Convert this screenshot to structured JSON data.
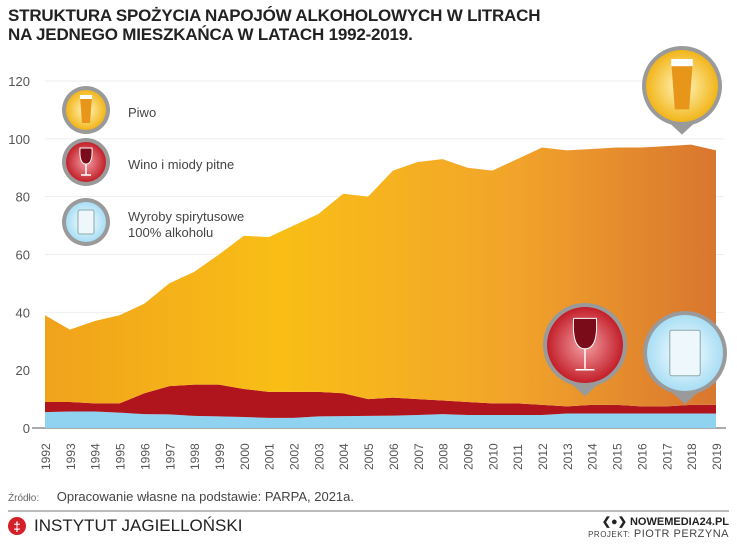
{
  "title_lines": [
    "STRUKTURA SPOŻYCIA NAPOJÓW ALKOHOLOWYCH W LITRACH",
    "NA JEDNEGO MIESZKAŃCA W LATACH 1992-2019."
  ],
  "chart_data": {
    "type": "area",
    "stacked": true,
    "title": "STRUKTURA SPOŻYCIA NAPOJÓW ALKOHOLOWYCH W LITRACH NA JEDNEGO MIESZKAŃCA W LATACH 1992-2019.",
    "xlabel": "",
    "ylabel": "",
    "ylim": [
      0,
      120
    ],
    "yticks": [
      0,
      20,
      40,
      60,
      80,
      100,
      120
    ],
    "grid": true,
    "legend_position": "top-left",
    "categories": [
      "1992",
      "1993",
      "1994",
      "1995",
      "1996",
      "1997",
      "1998",
      "1999",
      "2000",
      "2001",
      "2002",
      "2003",
      "2004",
      "2005",
      "2006",
      "2007",
      "2008",
      "2009",
      "2010",
      "2011",
      "2012",
      "2013",
      "2014",
      "2015",
      "2016",
      "2017",
      "2018",
      "2019"
    ],
    "series": [
      {
        "name": "Wyroby spirytusowe 100% alkoholu",
        "color": "#8fd3f0",
        "values": [
          5.5,
          5.7,
          5.7,
          5.3,
          4.8,
          4.7,
          4.2,
          4.0,
          3.8,
          3.5,
          3.5,
          4.0,
          4.1,
          4.2,
          4.3,
          4.5,
          4.8,
          4.5,
          4.5,
          4.5,
          4.5,
          5.0,
          5.0,
          5.0,
          5.0,
          5.0,
          5.0,
          5.0
        ]
      },
      {
        "name": "Wino i miody pitne",
        "color": "#b0141c",
        "values": [
          3.5,
          3.3,
          2.8,
          3.2,
          7.2,
          9.8,
          10.8,
          11.0,
          9.7,
          9.0,
          9.0,
          8.5,
          7.9,
          5.8,
          6.2,
          5.5,
          4.7,
          4.5,
          4.0,
          4.0,
          3.5,
          2.5,
          3.0,
          3.0,
          2.5,
          2.5,
          3.0,
          3.0
        ]
      },
      {
        "name": "Piwo",
        "color": "#f5b21a",
        "values": [
          30,
          25,
          28.5,
          30.5,
          31,
          35.5,
          39,
          45,
          53,
          53.5,
          57.5,
          61.5,
          69,
          70,
          78.5,
          82,
          83.5,
          81,
          80.5,
          84.5,
          89,
          88.5,
          88.5,
          89,
          89.5,
          90,
          90,
          88
        ]
      }
    ]
  },
  "legend": {
    "beer": "Piwo",
    "wine": "Wino i miody pitne",
    "spirits_1": "Wyroby spirytusowe",
    "spirits_2": "100% alkoholu"
  },
  "source": {
    "label": "Źródło:",
    "text": "Opracowanie własne na podstawie: PARPA, 2021a."
  },
  "footer": {
    "institute": "INSTYTUT  JAGIELLOŃSKI",
    "site": "NOWEMEDIA24.PL",
    "project_label": "PROJEKT:",
    "project_name": "PIOTR PERZYNA"
  }
}
